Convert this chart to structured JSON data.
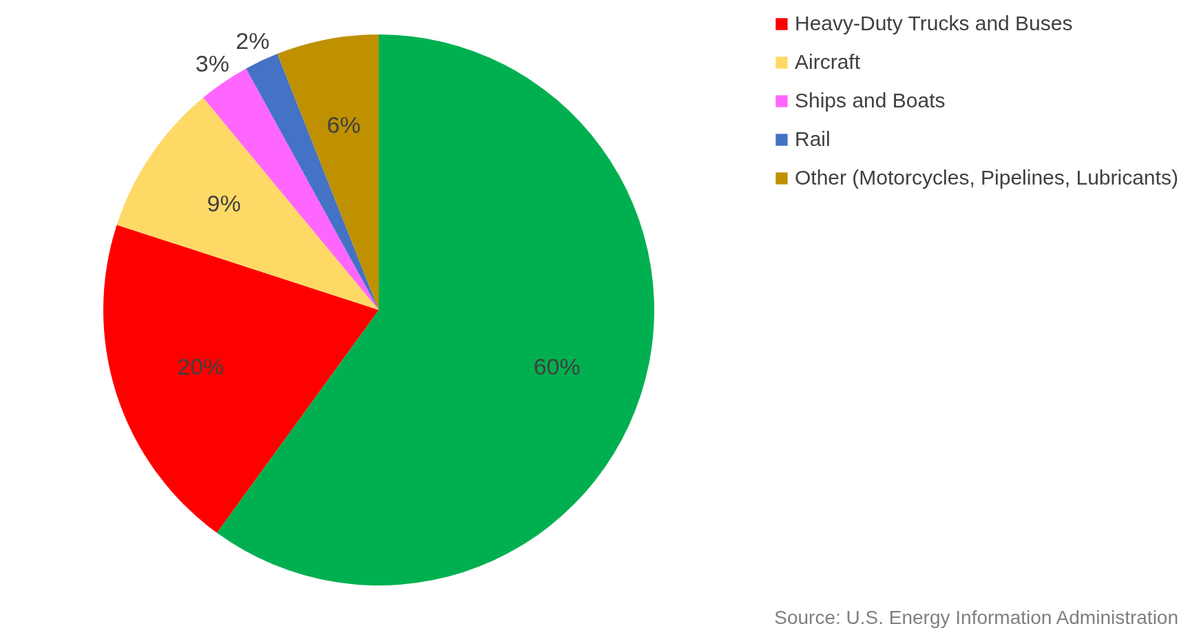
{
  "chart_data": {
    "type": "pie",
    "categories": [
      null,
      "Heavy-Duty Trucks and Buses",
      "Aircraft",
      "Ships and Boats",
      "Rail",
      "Other (Motorcycles, Pipelines, Lubricants)"
    ],
    "values": [
      60,
      20,
      9,
      3,
      2,
      6
    ],
    "colors": [
      "#00b050",
      "#ff0000",
      "#ffd966",
      "#ff66ff",
      "#4472c4",
      "#bf9000"
    ],
    "value_labels": [
      "60%",
      "20%",
      "9%",
      "3%",
      "2%",
      "6%"
    ],
    "legend": "right",
    "annotations": [
      "Source: U.S. Energy Information Administration"
    ]
  }
}
